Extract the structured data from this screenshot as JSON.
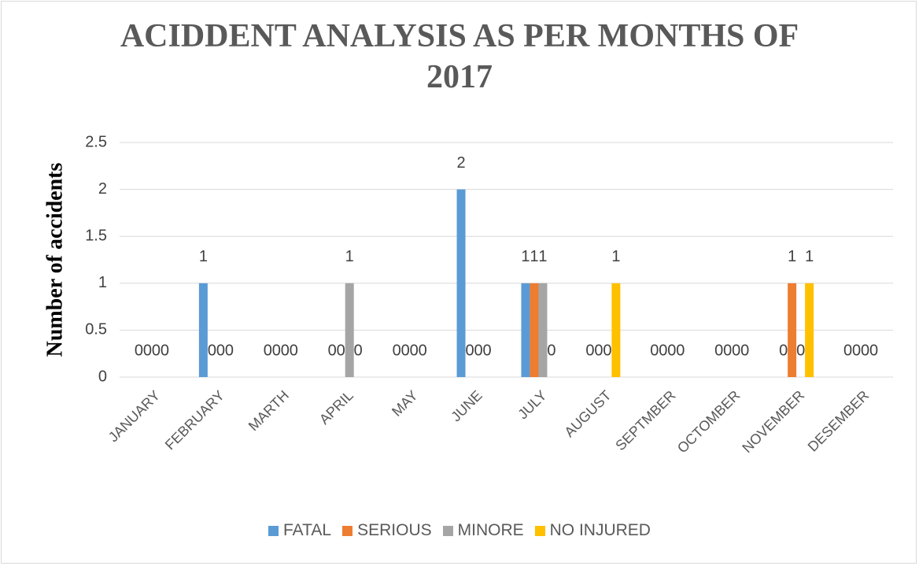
{
  "chart_data": {
    "type": "bar",
    "title": "ACIDDENT ANALYSIS AS PER MONTHS OF 2017",
    "y_label": "Number of accidents",
    "categories": [
      "JANUARY",
      "FEBRUARY",
      "MARTH",
      "APRIL",
      "MAY",
      "JUNE",
      "JULY",
      "AUGUST",
      "SEPTMBER",
      "OCTOMBER",
      "NOVEMBER",
      "DESEMBER"
    ],
    "series": [
      {
        "name": "FATAL",
        "color": "#5b9bd5",
        "values": [
          0,
          1,
          0,
          0,
          0,
          2,
          1,
          0,
          0,
          0,
          0,
          0
        ]
      },
      {
        "name": "SERIOUS",
        "color": "#ed7d31",
        "values": [
          0,
          0,
          0,
          0,
          0,
          0,
          1,
          0,
          0,
          0,
          1,
          0
        ]
      },
      {
        "name": "MINORE",
        "color": "#a5a5a5",
        "values": [
          0,
          0,
          0,
          1,
          0,
          0,
          1,
          0,
          0,
          0,
          0,
          0
        ]
      },
      {
        "name": "NO INJURED",
        "color": "#ffc000",
        "values": [
          0,
          0,
          0,
          0,
          0,
          0,
          0,
          1,
          0,
          0,
          1,
          0
        ]
      }
    ],
    "ylim": [
      0,
      2.5
    ],
    "yticks": [
      0,
      0.5,
      1,
      1.5,
      2,
      2.5
    ],
    "grid": true,
    "legend": "bottom"
  }
}
